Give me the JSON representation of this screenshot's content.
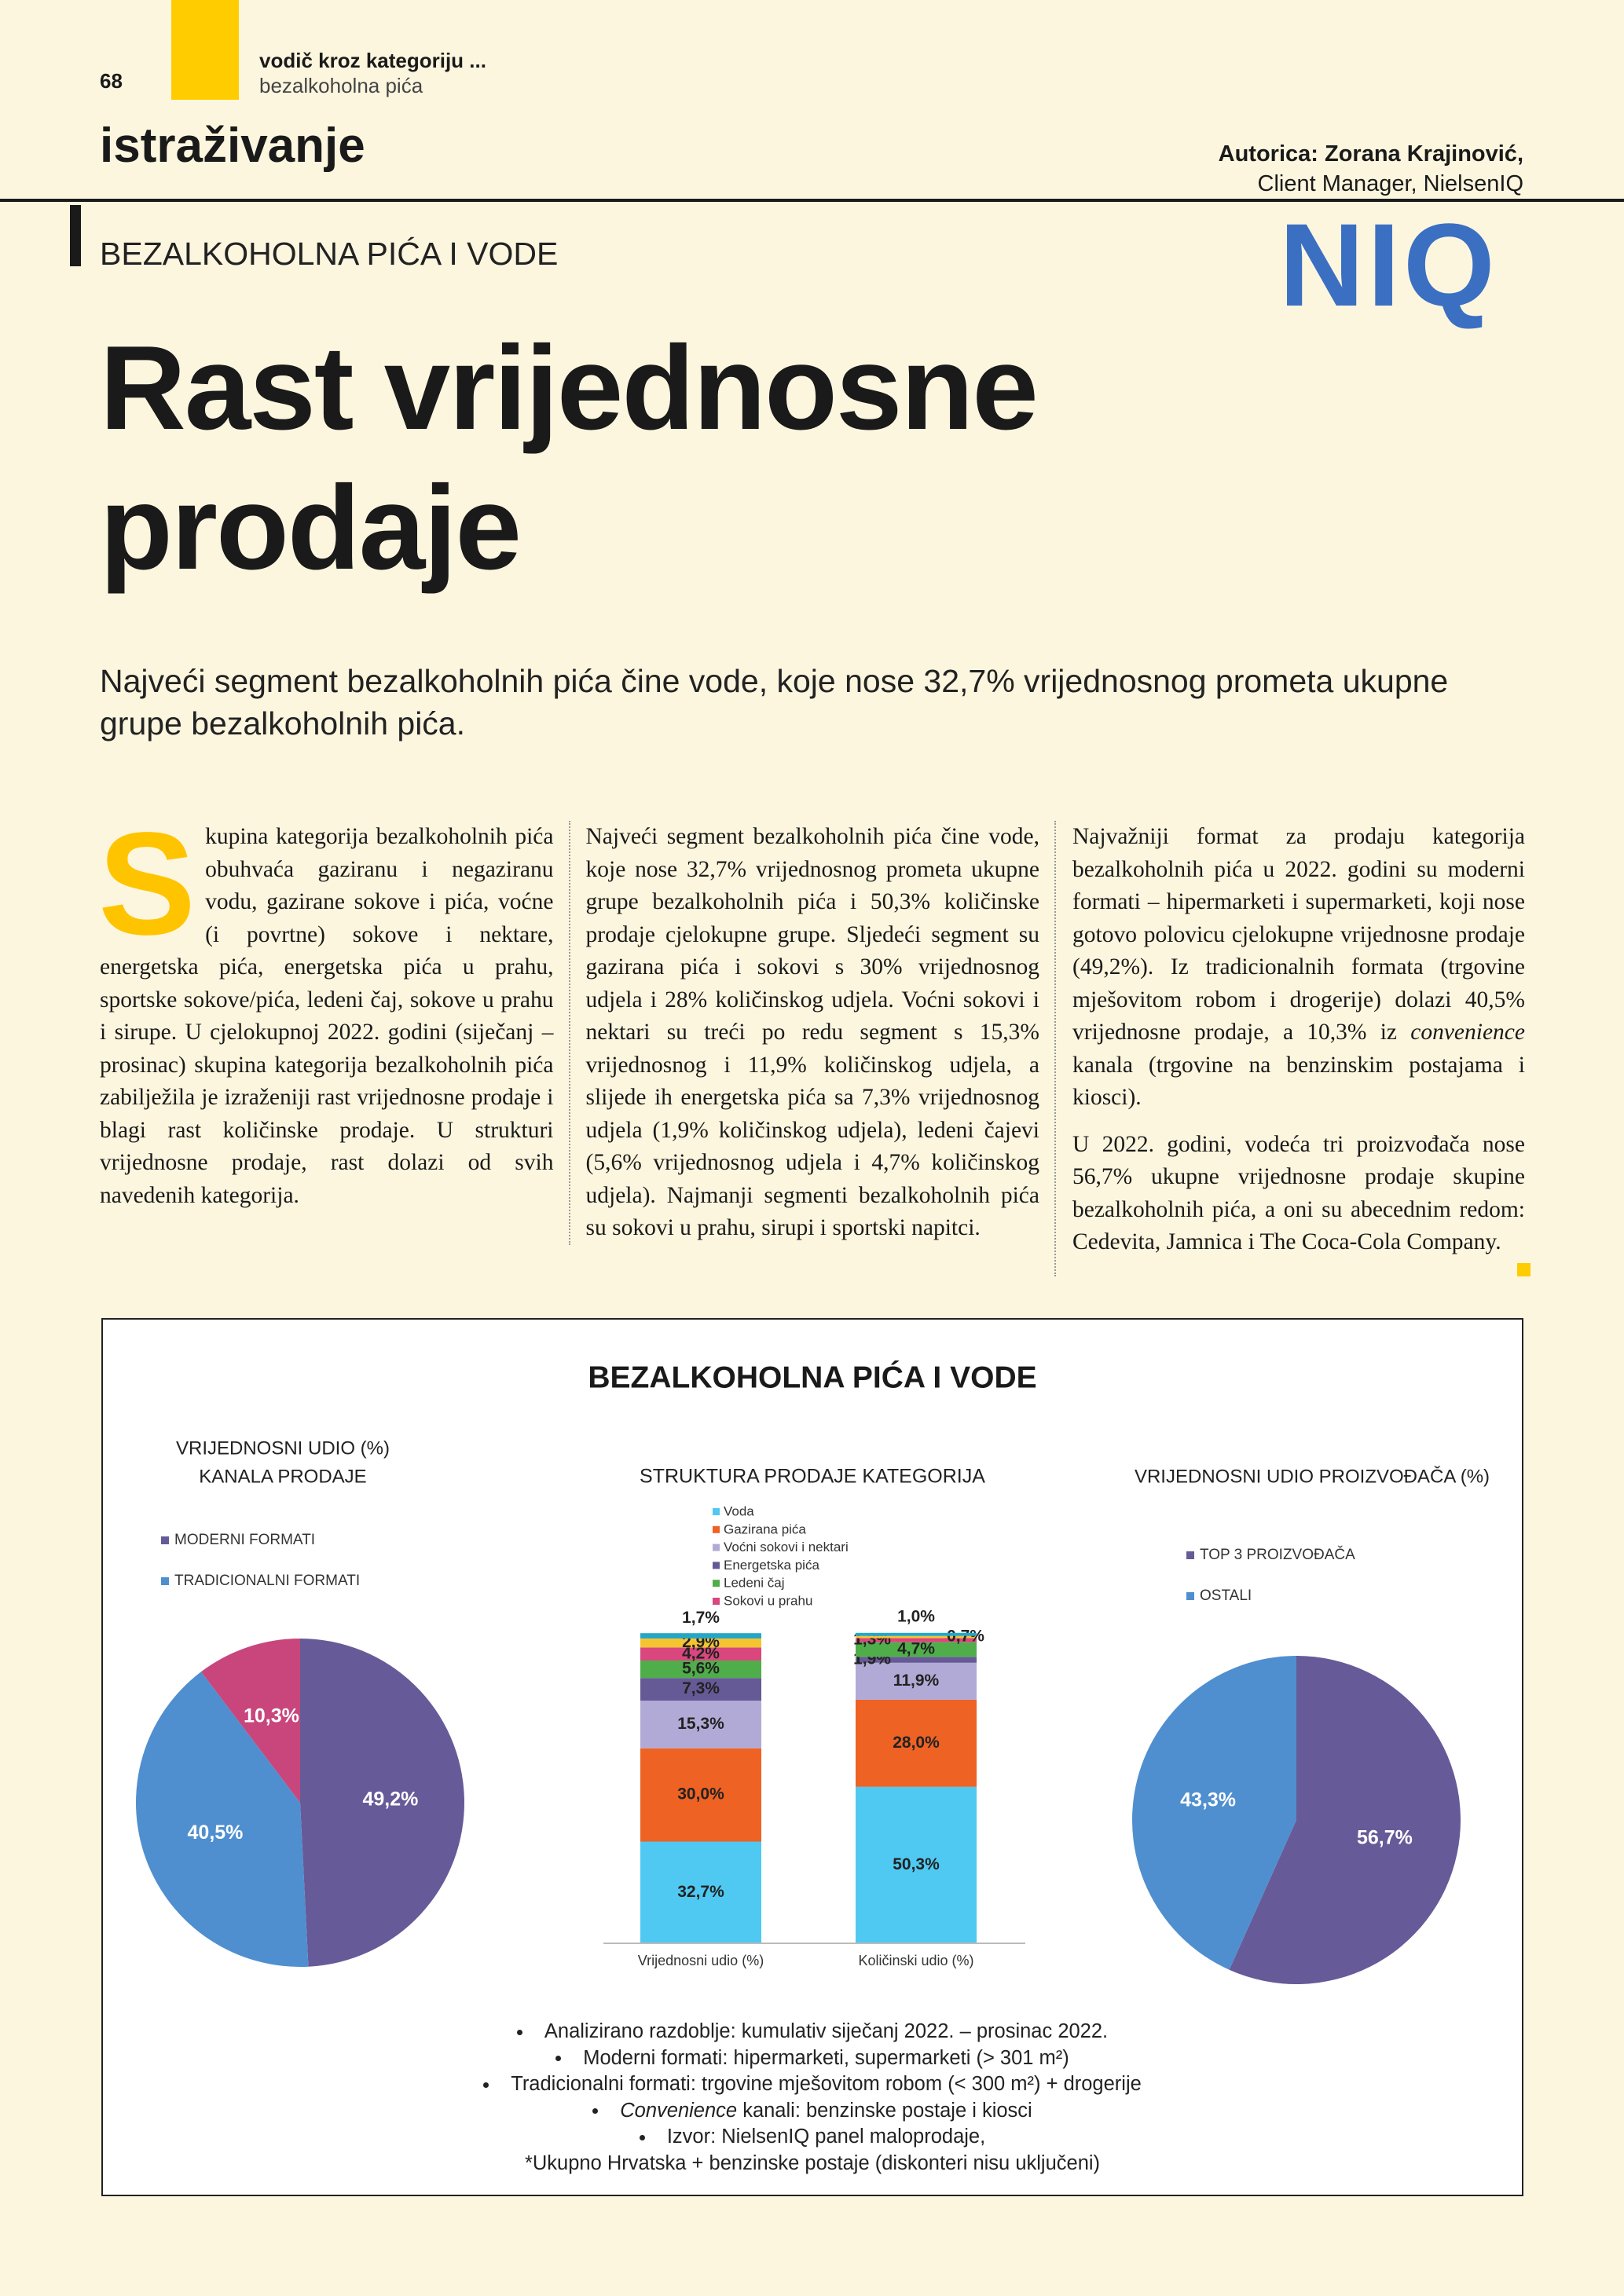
{
  "header": {
    "page_number": "68",
    "section": "vodič kroz kategoriju ...",
    "subsection": "bezalkoholna pića",
    "rubric": "istraživanje"
  },
  "author": {
    "name": "Autorica: Zorana Krajinović,",
    "role": "Client Manager, NielsenIQ"
  },
  "logo": "NIQ",
  "kicker": "BEZALKOHOLNA PIĆA I VODE",
  "title": [
    "Rast vrijednosne",
    "prodaje"
  ],
  "lead": "Najveći segment bezalkoholnih pića čine vode, koje nose 32,7% vrijednosnog prometa ukupne grupe bezalkoholnih pića.",
  "body": [
    {
      "paragraphs": [
        {
          "dropcap": "S",
          "runs": [
            {
              "text": "kupina kategorija bezalkoholnih pića obuhvaća gaziranu i negaziranu vodu, gazirane sokove i pića, voćne (i povrtne) sokove i nektare, energetska pića, energetska pića u prahu, sportske sokove/pića, ledeni čaj, sokove u prahu i sirupe. U cjelokupnoj 2022. godini (siječanj – prosinac) skupina kategorija bezalkoholnih pića zabilježila je izraženiji rast vrijednosne prodaje i blagi rast količinske prodaje. U strukturi vrijednosne prodaje, rast dolazi od svih navedenih kategorija."
            }
          ]
        },
        {
          "runs": [
            {
              "text": "Najveći segment bezalkoholnih pića čine vode, koje nose 32,7% vrijednosnog prometa ukupne grupe bezalkoholnih pića i 50,3% količinske prodaje cjelokupne grupe. Sljedeći segment su gazirana pića i sokovi s 30% vrijednosnog udjela i 28% količinskog udjela. Voćni sokovi i nektari su treći po redu segment s 15,3% vrijednosnog i 11,9% količinskog udjela, a slijede ih energetska pića sa 7,3% vrijednosnog udjela (1,9% količinskog udjela), ledeni čajevi (5,6% vrijednosnog udjela i 4,7% količinskog udjela). Najmanji segmenti bezalkoholnih pića su sokovi u prahu, sirupi i sportski napitci."
            }
          ]
        }
      ]
    },
    {
      "paragraphs": [
        {
          "runs": [
            {
              "text": "Najvažniji format za prodaju kategorija bezalkoholnih pića u 2022. godini su moderni formati – hipermarketi i supermarketi, koji nose gotovo polovicu cjelokupne vrijednosne prodaje (49,2%). Iz tradicionalnih formata (trgovine mješovitom robom i drogerije) dolazi 40,5% vrijednosne prodaje, a 10,3% iz "
            },
            {
              "text": "convenience",
              "italic": true
            },
            {
              "text": " kanala (trgovine na benzinskim postajama i kiosci)."
            }
          ]
        },
        {
          "runs": [
            {
              "text": "U 2022. godini, vodeća tri proizvođača nose 56,7% ukupne vrijednosne prodaje skupine bezalkoholnih pića, a oni su abecednim redom: Cedevita, Jamnica i The Coca-Cola Company."
            }
          ]
        }
      ]
    }
  ],
  "chart_box": {
    "title": "BEZALKOHOLNA PIĆA I VODE"
  },
  "chart_data": [
    {
      "type": "pie",
      "title": [
        "VRIJEDNOSNI UDIO (%)",
        "KANALA PRODAJE"
      ],
      "categories": [
        "MODERNI FORMATI",
        "TRADICIONALNI FORMATI",
        null
      ],
      "values": [
        49.2,
        40.5,
        10.3
      ],
      "value_labels": [
        "49,2%",
        "40,5%",
        "10,3%"
      ],
      "colors": [
        "#675a98",
        "#4f8fcf",
        "#c8467c"
      ]
    },
    {
      "type": "bar",
      "stacked": true,
      "title": "STRUKTURA PRODAJE KATEGORIJA",
      "categories": [
        "Vrijednosni udio (%)",
        "Količinski udio (%)"
      ],
      "ylim": [
        0,
        100
      ],
      "series": [
        {
          "name": "Voda",
          "color": "#4fc9f2",
          "values": [
            32.7,
            50.3
          ],
          "value_labels": [
            "32,7%",
            "50,3%"
          ]
        },
        {
          "name": "Gazirana pića",
          "color": "#ee6224",
          "values": [
            30.0,
            28.0
          ],
          "value_labels": [
            "30,0%",
            "28,0%"
          ]
        },
        {
          "name": "Voćni sokovi i nektari",
          "color": "#b1aad6",
          "values": [
            15.3,
            11.9
          ],
          "value_labels": [
            "15,3%",
            "11,9%"
          ]
        },
        {
          "name": "Energetska pića",
          "color": "#655a96",
          "values": [
            7.3,
            1.9
          ],
          "value_labels": [
            "7,3%",
            "1,9%"
          ]
        },
        {
          "name": "Ledeni čaj",
          "color": "#4fae4a",
          "values": [
            5.6,
            4.7
          ],
          "value_labels": [
            "5,6%",
            "4,7%"
          ]
        },
        {
          "name": "Sokovi u prahu",
          "color": "#d9477e",
          "values": [
            4.2,
            1.3
          ],
          "value_labels": [
            "4,2%",
            "1,3%"
          ]
        },
        {
          "color": "#f5c431",
          "values": [
            2.9,
            0.7
          ],
          "value_labels": [
            "2,9%",
            "0,7%"
          ]
        },
        {
          "color": "#24a6c6",
          "values": [
            1.7,
            1.0
          ],
          "value_labels": [
            "1,7%",
            "1,0%"
          ]
        }
      ]
    },
    {
      "type": "pie",
      "title": "VRIJEDNOSNI UDIO PROIZVOĐAČA (%)",
      "categories": [
        "TOP 3 PROIZVOĐAČA",
        "OSTALI"
      ],
      "values": [
        56.7,
        43.3
      ],
      "value_labels": [
        "56,7%",
        "43,3%"
      ],
      "colors": [
        "#675a98",
        "#4f8fcf"
      ]
    }
  ],
  "notes": [
    {
      "bullet": true,
      "runs": [
        {
          "text": "Analizirano razdoblje: kumulativ siječanj 2022. – prosinac 2022."
        }
      ]
    },
    {
      "bullet": true,
      "runs": [
        {
          "text": "Moderni formati: hipermarketi, supermarketi (> 301 m²)"
        }
      ]
    },
    {
      "bullet": true,
      "runs": [
        {
          "text": "Tradicionalni formati: trgovine mješovitom robom (< 300 m²) + drogerije"
        }
      ]
    },
    {
      "bullet": true,
      "runs": [
        {
          "text": "Convenience",
          "italic": true
        },
        {
          "text": " kanali: benzinske postaje i kiosci"
        }
      ]
    },
    {
      "bullet": true,
      "runs": [
        {
          "text": "Izvor: NielsenIQ panel maloprodaje,"
        }
      ]
    },
    {
      "bullet": false,
      "runs": [
        {
          "text": "*Ukupno Hrvatska + benzinske postaje (diskonteri nisu uključeni)"
        }
      ]
    }
  ]
}
